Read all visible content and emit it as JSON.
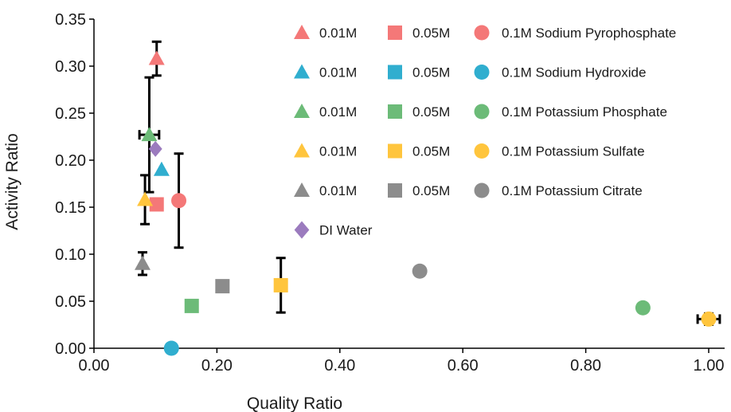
{
  "chart_data": {
    "type": "scatter",
    "title": "",
    "xlabel": "Quality Ratio",
    "ylabel": "Activity Ratio",
    "xlim": [
      0,
      1.0
    ],
    "ylim": [
      0,
      0.35
    ],
    "x_ticks": [
      "0.00",
      "0.20",
      "0.40",
      "0.60",
      "0.80",
      "1.00"
    ],
    "y_ticks": [
      "0.00",
      "0.05",
      "0.10",
      "0.15",
      "0.20",
      "0.25",
      "0.30",
      "0.35"
    ],
    "grid": false,
    "legend_placement": "top-right",
    "legend_rows": [
      {
        "compound": "Sodium Pyrophosphate",
        "color": "#F47878"
      },
      {
        "compound": "Sodium Hydroxide",
        "color": "#30AECF"
      },
      {
        "compound": "Potassium Phosphate",
        "color": "#6CBB78"
      },
      {
        "compound": "Potassium Sulfate",
        "color": "#FFC53D"
      },
      {
        "compound": "Potassium Citrate",
        "color": "#8C8C8C"
      }
    ],
    "legend_concentrations": [
      "0.01M",
      "0.05M",
      "0.1M"
    ],
    "legend_extra": {
      "name": "DI Water",
      "color": "#9B7BBE"
    },
    "series": [
      {
        "name": "0.01M Sodium Pyrophosphate",
        "marker": "triangle",
        "color": "#F47878",
        "x": 0.102,
        "y": 0.308,
        "yerr": 0.018
      },
      {
        "name": "0.05M Sodium Pyrophosphate",
        "marker": "square",
        "color": "#F47878",
        "x": 0.102,
        "y": 0.153
      },
      {
        "name": "0.1M Sodium Pyrophosphate",
        "marker": "circle",
        "color": "#F47878",
        "x": 0.138,
        "y": 0.157,
        "yerr": 0.05
      },
      {
        "name": "0.01M Sodium Hydroxide",
        "marker": "triangle",
        "color": "#30AECF",
        "x": 0.11,
        "y": 0.19
      },
      {
        "name": "0.1M Sodium Hydroxide",
        "marker": "circle",
        "color": "#30AECF",
        "x": 0.126,
        "y": 0.0
      },
      {
        "name": "0.01M Potassium Phosphate",
        "marker": "triangle",
        "color": "#6CBB78",
        "x": 0.09,
        "y": 0.227,
        "yerr": 0.061,
        "xerr": 0.016
      },
      {
        "name": "0.05M Potassium Phosphate",
        "marker": "square",
        "color": "#6CBB78",
        "x": 0.159,
        "y": 0.045
      },
      {
        "name": "0.1M Potassium Phosphate",
        "marker": "circle",
        "color": "#6CBB78",
        "x": 0.893,
        "y": 0.043
      },
      {
        "name": "0.01M Potassium Sulfate",
        "marker": "triangle",
        "color": "#FFC53D",
        "x": 0.083,
        "y": 0.158,
        "yerr": 0.026
      },
      {
        "name": "0.05M Potassium Sulfate",
        "marker": "square",
        "color": "#FFC53D",
        "x": 0.304,
        "y": 0.067,
        "yerr": 0.029
      },
      {
        "name": "0.1M Potassium Sulfate",
        "marker": "circle",
        "color": "#FFC53D",
        "x": 1.0,
        "y": 0.031,
        "yerr": 0.006,
        "xerr": 0.018
      },
      {
        "name": "0.01M Potassium Citrate",
        "marker": "triangle",
        "color": "#8C8C8C",
        "x": 0.079,
        "y": 0.09,
        "yerr": 0.012
      },
      {
        "name": "0.05M Potassium Citrate",
        "marker": "square",
        "color": "#8C8C8C",
        "x": 0.209,
        "y": 0.066
      },
      {
        "name": "0.1M Potassium Citrate",
        "marker": "circle",
        "color": "#8C8C8C",
        "x": 0.53,
        "y": 0.082
      },
      {
        "name": "DI Water",
        "marker": "diamond",
        "color": "#9B7BBE",
        "x": 0.1,
        "y": 0.212
      }
    ]
  }
}
